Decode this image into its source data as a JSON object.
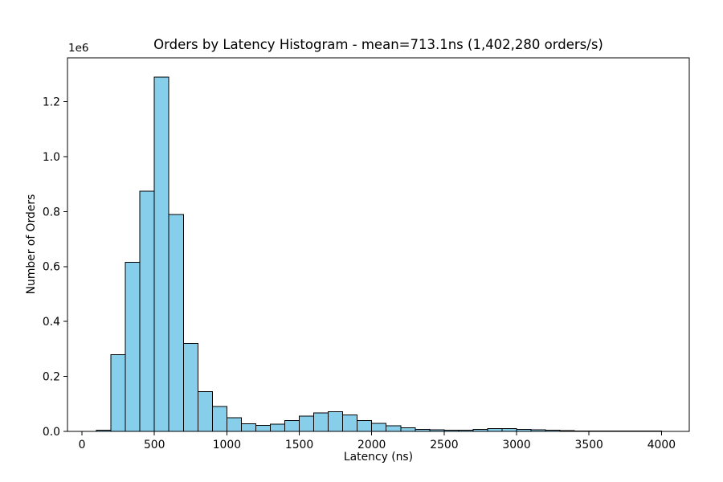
{
  "chart_data": {
    "type": "bar",
    "subtype": "histogram",
    "title": "Orders by Latency Histogram - mean=713.1ns (1,402,280 orders/s)",
    "xlabel": "Latency (ns)",
    "ylabel": "Number of Orders",
    "y_scale_offset_label": "1e6",
    "grid": false,
    "legend": null,
    "bar_color": "#87CEEB",
    "bar_edge_color": "#000000",
    "axis_color": "#000000",
    "background_color": "#ffffff",
    "xlim": [
      -100,
      4192
    ],
    "ylim": [
      0,
      1360000
    ],
    "x_ticks": {
      "values": [
        0,
        500,
        1000,
        1500,
        2000,
        2500,
        3000,
        3500,
        4000
      ],
      "labels": [
        "0",
        "500",
        "1000",
        "1500",
        "2000",
        "2500",
        "3000",
        "3500",
        "4000"
      ]
    },
    "y_ticks": {
      "values": [
        0,
        200000,
        400000,
        600000,
        800000,
        1000000,
        1200000
      ],
      "labels": [
        "0.0",
        "0.2",
        "0.4",
        "0.6",
        "0.8",
        "1.0",
        "1.2"
      ]
    },
    "bins": {
      "start": 100,
      "width": 100,
      "bin_starts": [
        100,
        200,
        300,
        400,
        500,
        600,
        700,
        800,
        900,
        1000,
        1100,
        1200,
        1300,
        1400,
        1500,
        1600,
        1700,
        1800,
        1900,
        2000,
        2100,
        2200,
        2300,
        2400,
        2500,
        2600,
        2700,
        2800,
        2900,
        3000,
        3100,
        3200,
        3300,
        3400,
        3500,
        3600,
        3700,
        3800,
        3900
      ],
      "counts": [
        4000,
        280000,
        615000,
        875000,
        1290000,
        790000,
        320000,
        145000,
        90000,
        50000,
        28000,
        22000,
        26000,
        40000,
        56000,
        67000,
        71000,
        60000,
        40000,
        29000,
        21000,
        13000,
        8000,
        6000,
        5000,
        5000,
        7000,
        10000,
        10000,
        8000,
        6000,
        5000,
        2500,
        2000,
        1800,
        1500,
        1200,
        1000,
        800
      ]
    }
  }
}
